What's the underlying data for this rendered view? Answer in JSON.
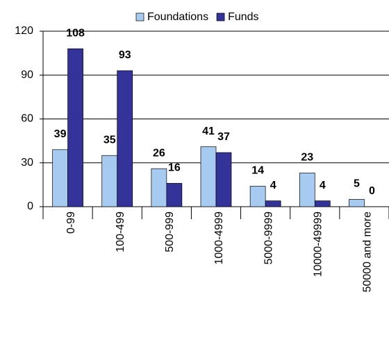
{
  "chart_data": {
    "type": "bar",
    "categories": [
      "0-99",
      "100-499",
      "500-999",
      "1000-4999",
      "5000-9999",
      "10000-49999",
      "50000 and more"
    ],
    "series": [
      {
        "name": "Foundations",
        "color": "#a6caf0",
        "values": [
          39,
          35,
          26,
          41,
          14,
          23,
          5
        ]
      },
      {
        "name": "Funds",
        "color": "#333399",
        "values": [
          108,
          93,
          16,
          37,
          4,
          4,
          0
        ]
      }
    ],
    "ylim": [
      0,
      120
    ],
    "yticks": [
      0,
      30,
      60,
      90,
      120
    ],
    "grid": true,
    "legend": "top"
  }
}
